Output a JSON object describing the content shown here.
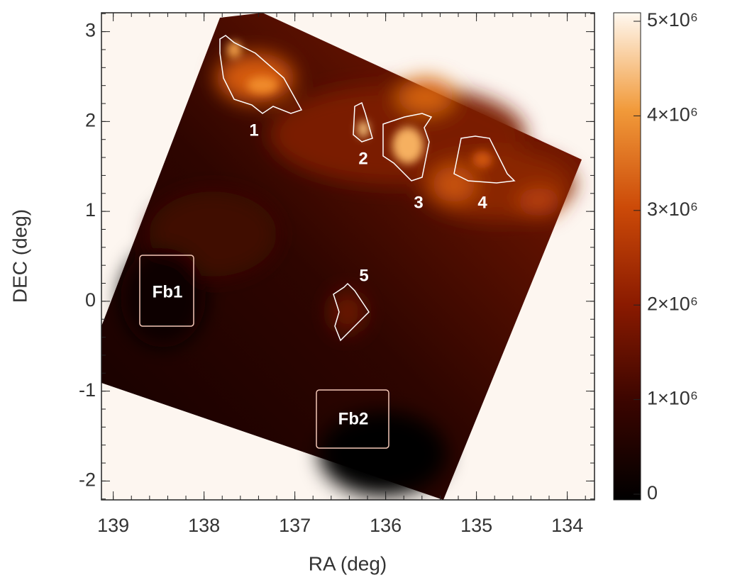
{
  "chart_data": {
    "type": "heatmap",
    "xlabel": "RA (deg)",
    "ylabel": "DEC (deg)",
    "xlim": [
      139.13,
      133.7
    ],
    "xticks": [
      139,
      138,
      137,
      136,
      135,
      134
    ],
    "ylim": [
      -2.21,
      3.21
    ],
    "yticks": [
      -2,
      -1,
      0,
      1,
      2,
      3
    ],
    "colorbar_lim": [
      -60000,
      5090000
    ],
    "colorbar_ticks": [
      0,
      {
        "value": 1000000,
        "label": "1×10⁶"
      },
      {
        "value": 2000000,
        "label": "2×10⁶"
      },
      {
        "value": 3000000,
        "label": "3×10⁶"
      },
      {
        "value": 4000000,
        "label": "4×10⁶"
      },
      {
        "value": 5000000,
        "label": "5×10⁶"
      }
    ],
    "annotations": [
      "1",
      "2",
      "3",
      "4",
      "5",
      "Fb1",
      "Fb2"
    ]
  }
}
